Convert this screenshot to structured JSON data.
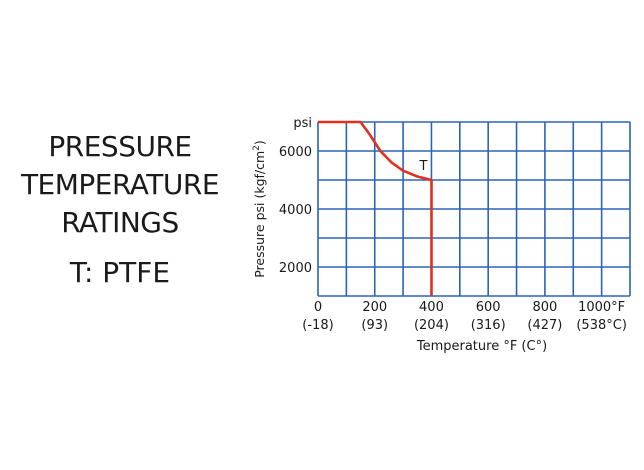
{
  "title_lines": [
    "PRESSURE",
    "TEMPERATURE",
    "RATINGS"
  ],
  "subtitle": "T: PTFE",
  "colors": {
    "grid": "#2b63b8",
    "curve": "#e0301e"
  },
  "chart_data": {
    "type": "line",
    "xlabel": "Temperature °F (C°)",
    "ylabel": "Pressure psi (kgf/cm",
    "ylabel_sup": "2",
    "ylabel_end": ")",
    "y_unit_label": "psi",
    "xlim": [
      0,
      1100
    ],
    "ylim": [
      1000,
      7000
    ],
    "x_ticks": [
      {
        "value": 0,
        "f": "0",
        "c": "(-18)"
      },
      {
        "value": 200,
        "f": "200",
        "c": "(93)"
      },
      {
        "value": 400,
        "f": "400",
        "c": "(204)"
      },
      {
        "value": 600,
        "f": "600",
        "c": "(316)"
      },
      {
        "value": 800,
        "f": "800",
        "c": "(427)"
      },
      {
        "value": 1000,
        "f": "1000°F",
        "c": "(538°C)"
      }
    ],
    "y_ticks": [
      2000,
      4000,
      6000
    ],
    "series": [
      {
        "name": "T",
        "points": [
          [
            0,
            7000
          ],
          [
            150,
            7000
          ],
          [
            180,
            6600
          ],
          [
            220,
            6000
          ],
          [
            260,
            5600
          ],
          [
            300,
            5320
          ],
          [
            350,
            5120
          ],
          [
            400,
            5000
          ],
          [
            400,
            1000
          ]
        ]
      }
    ],
    "grid": true
  }
}
